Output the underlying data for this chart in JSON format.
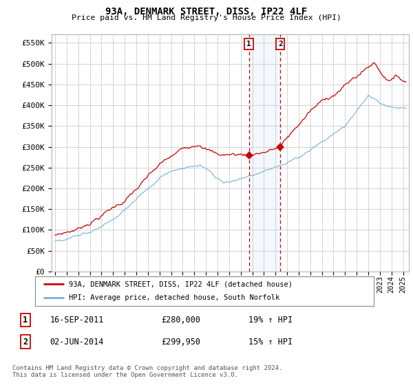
{
  "title": "93A, DENMARK STREET, DISS, IP22 4LF",
  "subtitle": "Price paid vs. HM Land Registry's House Price Index (HPI)",
  "ylabel_ticks": [
    "£0",
    "£50K",
    "£100K",
    "£150K",
    "£200K",
    "£250K",
    "£300K",
    "£350K",
    "£400K",
    "£450K",
    "£500K",
    "£550K"
  ],
  "ytick_vals": [
    0,
    50000,
    100000,
    150000,
    200000,
    250000,
    300000,
    350000,
    400000,
    450000,
    500000,
    550000
  ],
  "ylim": [
    0,
    570000
  ],
  "xlim_start": 1994.7,
  "xlim_end": 2025.5,
  "line1_color": "#cc0000",
  "line2_color": "#7ab0d4",
  "legend_label1": "93A, DENMARK STREET, DISS, IP22 4LF (detached house)",
  "legend_label2": "HPI: Average price, detached house, South Norfolk",
  "event1_label": "1",
  "event1_x": 2011.71,
  "event1_y": 280000,
  "event2_label": "2",
  "event2_x": 2014.42,
  "event2_y": 299950,
  "event1_date": "16-SEP-2011",
  "event1_price": "£280,000",
  "event1_hpi": "19% ↑ HPI",
  "event2_date": "02-JUN-2014",
  "event2_price": "£299,950",
  "event2_hpi": "15% ↑ HPI",
  "footer": "Contains HM Land Registry data © Crown copyright and database right 2024.\nThis data is licensed under the Open Government Licence v3.0.",
  "background_color": "#ffffff",
  "plot_bg_color": "#ffffff",
  "grid_color": "#cccccc"
}
